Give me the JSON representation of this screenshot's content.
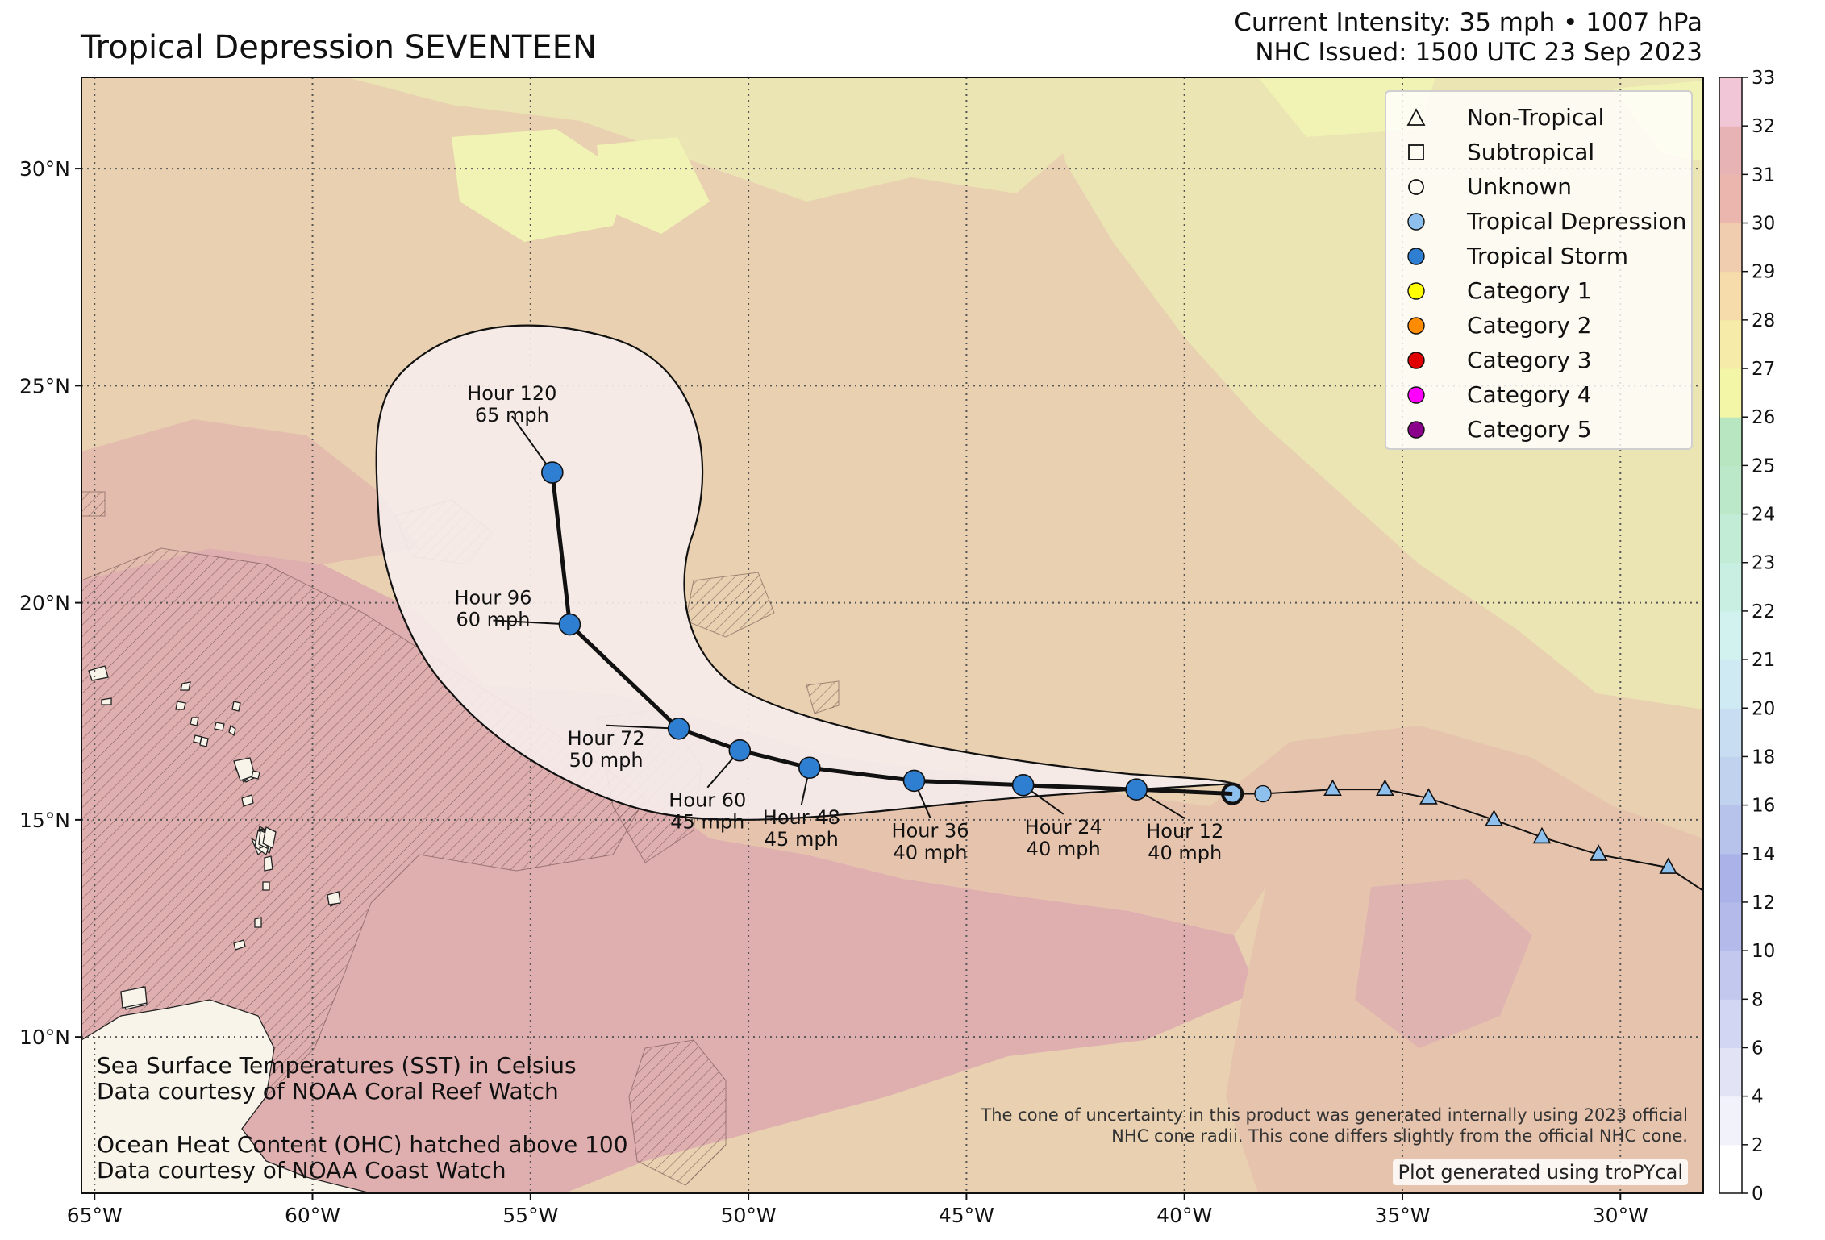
{
  "header": {
    "title": "Tropical Depression SEVENTEEN",
    "intensity": "Current Intensity: 35 mph • 1007 hPa",
    "issued": "NHC Issued: 1500 UTC 23 Sep 2023"
  },
  "map": {
    "extent_lon": [
      -65.3,
      -28.1
    ],
    "extent_lat": [
      6.4,
      32.1
    ],
    "lon_ticks": [
      {
        "lon": -65,
        "label": "65°W"
      },
      {
        "lon": -60,
        "label": "60°W"
      },
      {
        "lon": -55,
        "label": "55°W"
      },
      {
        "lon": -50,
        "label": "50°W"
      },
      {
        "lon": -45,
        "label": "45°W"
      },
      {
        "lon": -40,
        "label": "40°W"
      },
      {
        "lon": -35,
        "label": "35°W"
      },
      {
        "lon": -30,
        "label": "30°W"
      }
    ],
    "lat_ticks": [
      {
        "lat": 10,
        "label": "10°N"
      },
      {
        "lat": 15,
        "label": "15°N"
      },
      {
        "lat": 20,
        "label": "20°N"
      },
      {
        "lat": 25,
        "label": "25°N"
      },
      {
        "lat": 30,
        "label": "30°N"
      }
    ],
    "colors": {
      "sst_warm_28_29": "#e9cfb0",
      "sst_29_30": "#e6c3ad",
      "sst_30_31": "#dfafb0",
      "sst_27_28": "#ebe4b3",
      "sst_26_27": "#f0f3b4",
      "cone_fill": "#f5ebea",
      "storm_ts": "#2e7fd1",
      "storm_td": "#8ec0ee",
      "land": "#f8f4ea"
    }
  },
  "past_track": [
    {
      "lon": -28.0,
      "lat": 13.3
    },
    {
      "lon": -28.9,
      "lat": 13.9,
      "type": "nontropical"
    },
    {
      "lon": -30.5,
      "lat": 14.2,
      "type": "nontropical"
    },
    {
      "lon": -31.8,
      "lat": 14.6,
      "type": "nontropical"
    },
    {
      "lon": -32.9,
      "lat": 15.0,
      "type": "nontropical"
    },
    {
      "lon": -34.4,
      "lat": 15.5,
      "type": "nontropical"
    },
    {
      "lon": -35.4,
      "lat": 15.7,
      "type": "nontropical"
    },
    {
      "lon": -36.6,
      "lat": 15.7,
      "type": "nontropical"
    },
    {
      "lon": -38.2,
      "lat": 15.6,
      "type": "td"
    },
    {
      "lon": -38.9,
      "lat": 15.6,
      "type": "current"
    }
  ],
  "forecast": [
    {
      "hour": "Hour 12",
      "wind": "40 mph",
      "lon": -41.1,
      "lat": 15.7
    },
    {
      "hour": "Hour 24",
      "wind": "40 mph",
      "lon": -43.7,
      "lat": 15.8
    },
    {
      "hour": "Hour 36",
      "wind": "40 mph",
      "lon": -46.2,
      "lat": 15.9
    },
    {
      "hour": "Hour 48",
      "wind": "45 mph",
      "lon": -48.6,
      "lat": 16.2
    },
    {
      "hour": "Hour 60",
      "wind": "45 mph",
      "lon": -50.2,
      "lat": 16.6
    },
    {
      "hour": "Hour 72",
      "wind": "50 mph",
      "lon": -51.6,
      "lat": 17.1
    },
    {
      "hour": "Hour 96",
      "wind": "60 mph",
      "lon": -54.1,
      "lat": 19.5
    },
    {
      "hour": "Hour 120",
      "wind": "65 mph",
      "lon": -54.5,
      "lat": 23.0
    }
  ],
  "legend": [
    {
      "label": "Non-Tropical",
      "symbol": "triangle-outline"
    },
    {
      "label": "Subtropical",
      "symbol": "square-outline"
    },
    {
      "label": "Unknown",
      "symbol": "circle-outline"
    },
    {
      "label": "Tropical Depression",
      "symbol": "circle",
      "color": "#8ec0ee"
    },
    {
      "label": "Tropical Storm",
      "symbol": "circle",
      "color": "#2e7fd1"
    },
    {
      "label": "Category 1",
      "symbol": "circle",
      "color": "#ffff00"
    },
    {
      "label": "Category 2",
      "symbol": "circle",
      "color": "#ff8c00"
    },
    {
      "label": "Category 3",
      "symbol": "circle",
      "color": "#e00000"
    },
    {
      "label": "Category 4",
      "symbol": "circle",
      "color": "#ff00ff"
    },
    {
      "label": "Category 5",
      "symbol": "circle",
      "color": "#8b008b"
    }
  ],
  "colorbar": {
    "labels": [
      "0",
      "2",
      "4",
      "6",
      "8",
      "10",
      "12",
      "14",
      "16",
      "18",
      "20",
      "21",
      "22",
      "23",
      "24",
      "25",
      "26",
      "27",
      "28",
      "29",
      "30",
      "31",
      "32",
      "33"
    ],
    "colors": [
      "#ffffff",
      "#f2f2fb",
      "#e2e4f6",
      "#d3d6f2",
      "#c3c8ee",
      "#b4bbea",
      "#aab2e8",
      "#b8c3ec",
      "#c1d2ef",
      "#c8ddf1",
      "#cfeaf3",
      "#d2f2f0",
      "#c9efe2",
      "#c2ecd5",
      "#bbe8c8",
      "#b8e6c0",
      "#f3f6a6",
      "#f6eba8",
      "#f5dcaa",
      "#f0cdae",
      "#eab6ae",
      "#e8b3b5",
      "#f1c6d6",
      "#f7dcee"
    ]
  },
  "notes": {
    "sst_line1": "Sea Surface Temperatures (SST) in Celsius",
    "sst_line2": "Data courtesy of NOAA Coral Reef Watch",
    "ohc_line1": "Ocean Heat Content (OHC) hatched above 100",
    "ohc_line2": "Data courtesy of NOAA Coast Watch",
    "disclaimer_line1": "The cone of uncertainty in this product was generated internally using 2023 official",
    "disclaimer_line2": "NHC cone radii. This cone differs slightly from the official NHC cone.",
    "credit": "Plot generated using troPYcal"
  }
}
